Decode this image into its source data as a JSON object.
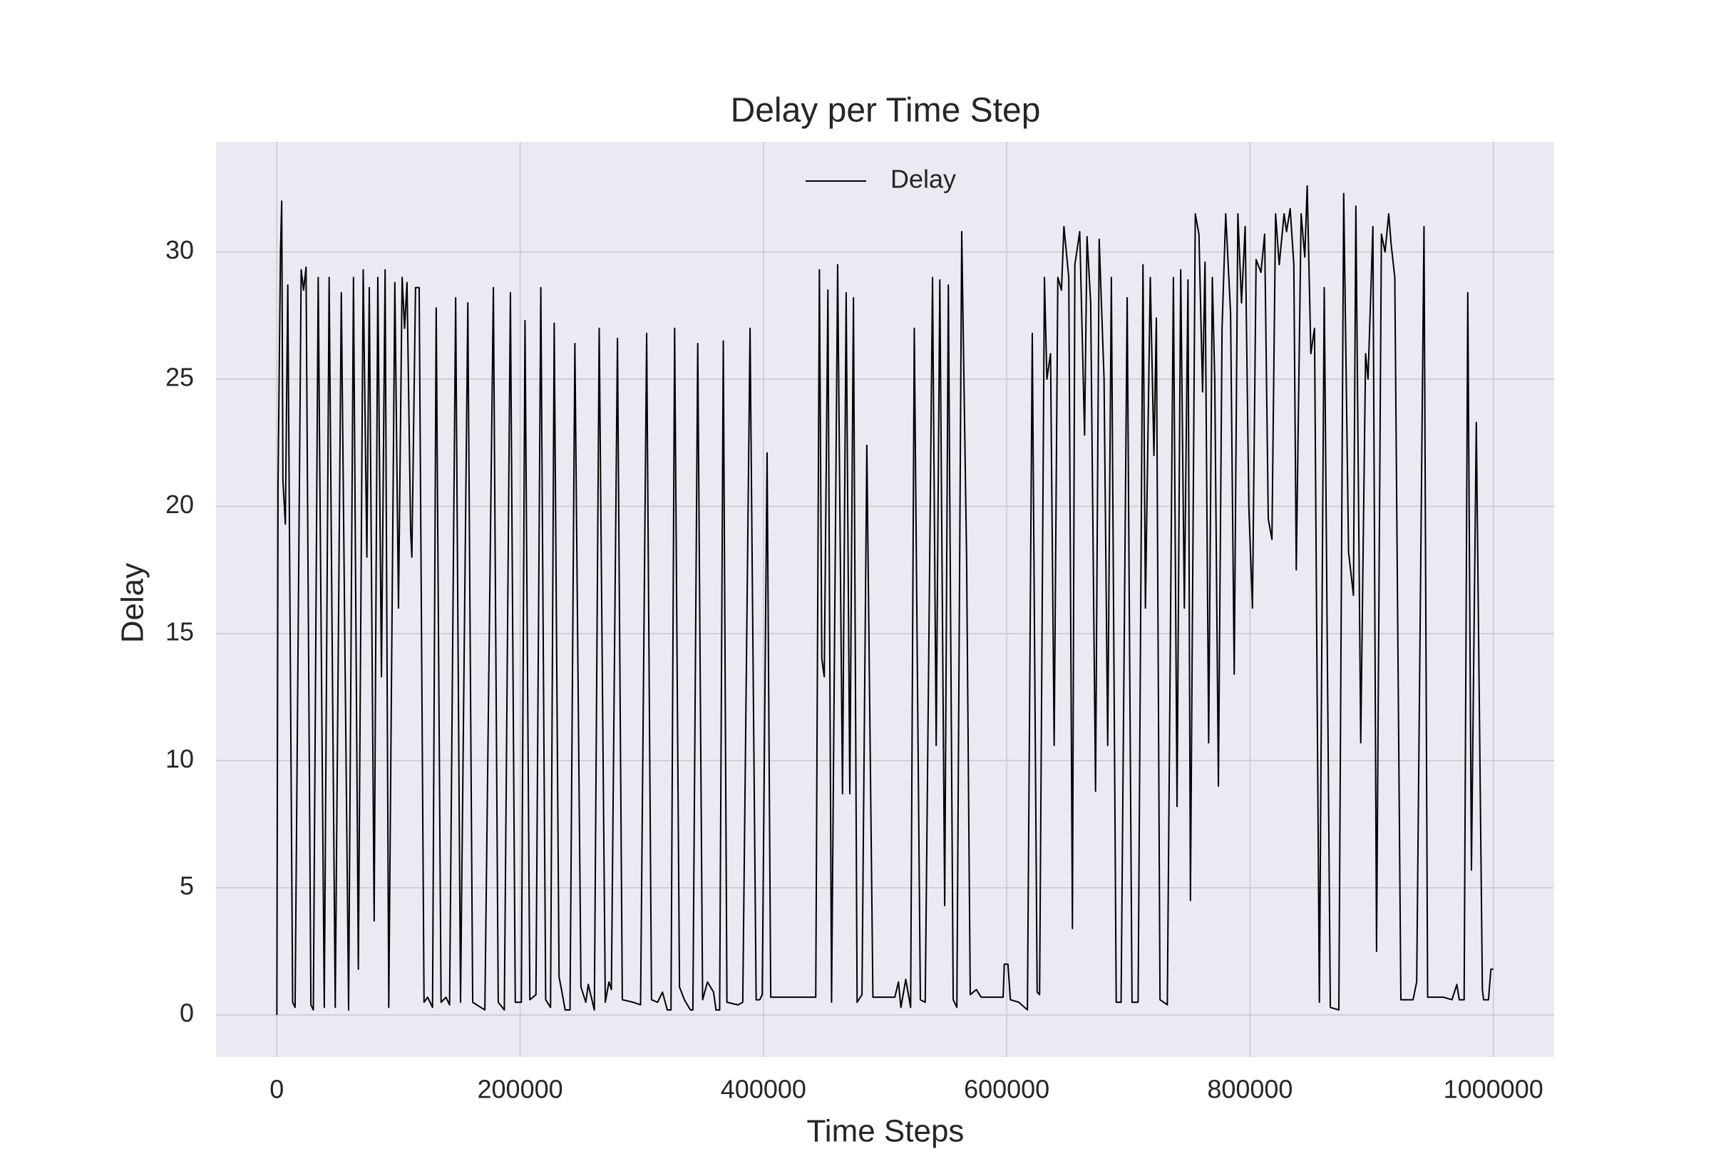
{
  "chart_data": {
    "type": "line",
    "title": "Delay per Time Step",
    "x_label": "Time Steps",
    "y_label": "Delay",
    "legend": "upper center",
    "grid": true,
    "xlim": [
      -50000,
      1050000
    ],
    "ylim": [
      -1.65,
      34.33
    ],
    "xticks": [
      0,
      200000,
      400000,
      600000,
      800000,
      1000000
    ],
    "yticks": [
      0,
      5,
      10,
      15,
      20,
      25,
      30
    ],
    "x": [
      0,
      1000,
      3000,
      4000,
      5000,
      7000,
      9000,
      13000,
      15000,
      20000,
      22000,
      24000,
      28000,
      30000,
      34000,
      39000,
      43000,
      48000,
      53000,
      59000,
      63000,
      67000,
      71000,
      74000,
      76000,
      80000,
      83000,
      86000,
      89000,
      92000,
      97000,
      100000,
      103000,
      105000,
      107000,
      110000,
      111000,
      114000,
      117000,
      121000,
      124000,
      128000,
      131000,
      135000,
      139000,
      142000,
      147000,
      151000,
      157000,
      161000,
      171000,
      178000,
      182000,
      187000,
      192000,
      196000,
      201000,
      204000,
      208000,
      213000,
      217000,
      221000,
      225000,
      228000,
      232000,
      234000,
      237000,
      241000,
      245000,
      250000,
      254000,
      256000,
      261000,
      265000,
      270000,
      273000,
      275000,
      280000,
      284000,
      293000,
      299000,
      304000,
      308000,
      313000,
      317000,
      321000,
      324000,
      327000,
      331000,
      335000,
      340000,
      342000,
      346000,
      350000,
      354000,
      359000,
      361000,
      364000,
      367000,
      370000,
      379000,
      383000,
      389000,
      394000,
      397000,
      399000,
      403000,
      406000,
      443000,
      446000,
      448000,
      450000,
      453000,
      456000,
      461000,
      465000,
      468000,
      471000,
      474000,
      477000,
      481000,
      485000,
      490000,
      508000,
      511000,
      513000,
      517000,
      521000,
      524000,
      529000,
      533000,
      539000,
      542000,
      545000,
      549000,
      552000,
      556000,
      559000,
      563000,
      567000,
      570000,
      575000,
      579000,
      597000,
      598000,
      601000,
      603000,
      610000,
      617000,
      621000,
      625000,
      627000,
      631000,
      633000,
      636000,
      639000,
      642000,
      645000,
      647000,
      651000,
      654000,
      656000,
      660000,
      664000,
      666000,
      669000,
      673000,
      676000,
      680000,
      683000,
      686000,
      690000,
      694000,
      699000,
      703000,
      708000,
      712000,
      714000,
      718000,
      721000,
      723000,
      726000,
      732000,
      737000,
      740000,
      743000,
      746000,
      749000,
      751000,
      755000,
      758000,
      761000,
      763000,
      766000,
      769000,
      771000,
      774000,
      777000,
      780000,
      784000,
      787000,
      790000,
      793000,
      796000,
      799000,
      802000,
      805000,
      809000,
      812000,
      815000,
      818000,
      821000,
      824000,
      828000,
      830000,
      833000,
      836000,
      838000,
      842000,
      845000,
      847000,
      850000,
      853000,
      857000,
      861000,
      866000,
      873000,
      877000,
      881000,
      885000,
      887000,
      891000,
      895000,
      897000,
      901000,
      904000,
      908000,
      911000,
      914000,
      916000,
      919000,
      924000,
      934000,
      937000,
      943000,
      946000,
      959000,
      966000,
      970000,
      972000,
      976000,
      979000,
      982000,
      986000,
      991000,
      992000,
      996000,
      998000,
      1000000
    ],
    "series": [
      {
        "name": "Delay",
        "color": "#000000",
        "values": [
          0,
          21,
          30,
          32,
          21,
          19.3,
          28.7,
          0.5,
          0.3,
          29.3,
          28.5,
          29.4,
          0.4,
          0.2,
          29,
          0.3,
          29,
          0.3,
          28.4,
          0.2,
          29,
          1.8,
          29.3,
          18,
          28.6,
          3.7,
          29,
          13.3,
          29.3,
          0.3,
          28.8,
          16,
          29,
          27,
          28.8,
          19,
          18,
          28.6,
          28.6,
          0.5,
          0.7,
          0.3,
          27.8,
          0.5,
          0.7,
          0.4,
          28.2,
          0.5,
          28,
          0.5,
          0.2,
          28.6,
          0.5,
          0.2,
          28.4,
          0.5,
          0.5,
          27.3,
          0.6,
          0.8,
          28.6,
          0.6,
          0.3,
          27.2,
          1.5,
          1.0,
          0.2,
          0.2,
          26.4,
          1.1,
          0.5,
          1.2,
          0.2,
          27,
          0.5,
          1.3,
          1.0,
          26.6,
          0.6,
          0.5,
          0.4,
          26.8,
          0.6,
          0.5,
          0.9,
          0.2,
          0.2,
          27,
          1.1,
          0.6,
          0.2,
          0.2,
          26.4,
          0.6,
          1.3,
          0.9,
          0.2,
          0.2,
          26.5,
          0.5,
          0.4,
          0.5,
          27,
          0.6,
          0.6,
          0.8,
          22.1,
          0.7,
          0.7,
          29.3,
          14,
          13.3,
          28.5,
          0.5,
          29.5,
          8.7,
          28.4,
          8.7,
          28.2,
          0.5,
          0.8,
          22.4,
          0.7,
          0.7,
          1.3,
          0.3,
          1.4,
          0.3,
          27,
          0.6,
          0.5,
          29,
          10.6,
          28.9,
          4.3,
          28.7,
          0.6,
          0.3,
          30.8,
          18,
          0.8,
          1.0,
          0.7,
          0.7,
          2,
          2,
          0.6,
          0.5,
          0.2,
          26.8,
          0.9,
          0.8,
          29,
          25,
          26,
          10.6,
          29,
          28.5,
          31,
          29,
          3.4,
          29.5,
          30.8,
          22.8,
          30.6,
          28,
          8.8,
          30.5,
          25,
          10.6,
          29,
          0.5,
          0.5,
          28.2,
          0.5,
          0.5,
          29.5,
          16,
          29,
          22,
          27.4,
          0.6,
          0.4,
          29,
          8.2,
          29.3,
          16,
          28.9,
          4.5,
          31.5,
          30.7,
          24.5,
          29.6,
          10.7,
          29,
          25,
          9,
          27,
          31.5,
          27.6,
          13.4,
          31.5,
          28,
          31,
          20,
          16,
          29.7,
          29.2,
          30.7,
          19.5,
          18.7,
          31.5,
          29.5,
          31.5,
          30.8,
          31.7,
          29.5,
          17.5,
          31.5,
          29.8,
          32.6,
          26,
          27,
          0.5,
          28.6,
          0.3,
          0.2,
          32.3,
          18.2,
          16.5,
          31.8,
          10.7,
          26,
          25,
          31,
          2.5,
          30.7,
          30,
          31.5,
          30.3,
          29,
          0.6,
          0.6,
          1.3,
          31,
          0.7,
          0.7,
          0.6,
          1.2,
          0.6,
          0.6,
          28.4,
          5.7,
          23.3,
          1.0,
          0.6,
          0.6,
          1.8,
          1.8
        ]
      }
    ]
  }
}
